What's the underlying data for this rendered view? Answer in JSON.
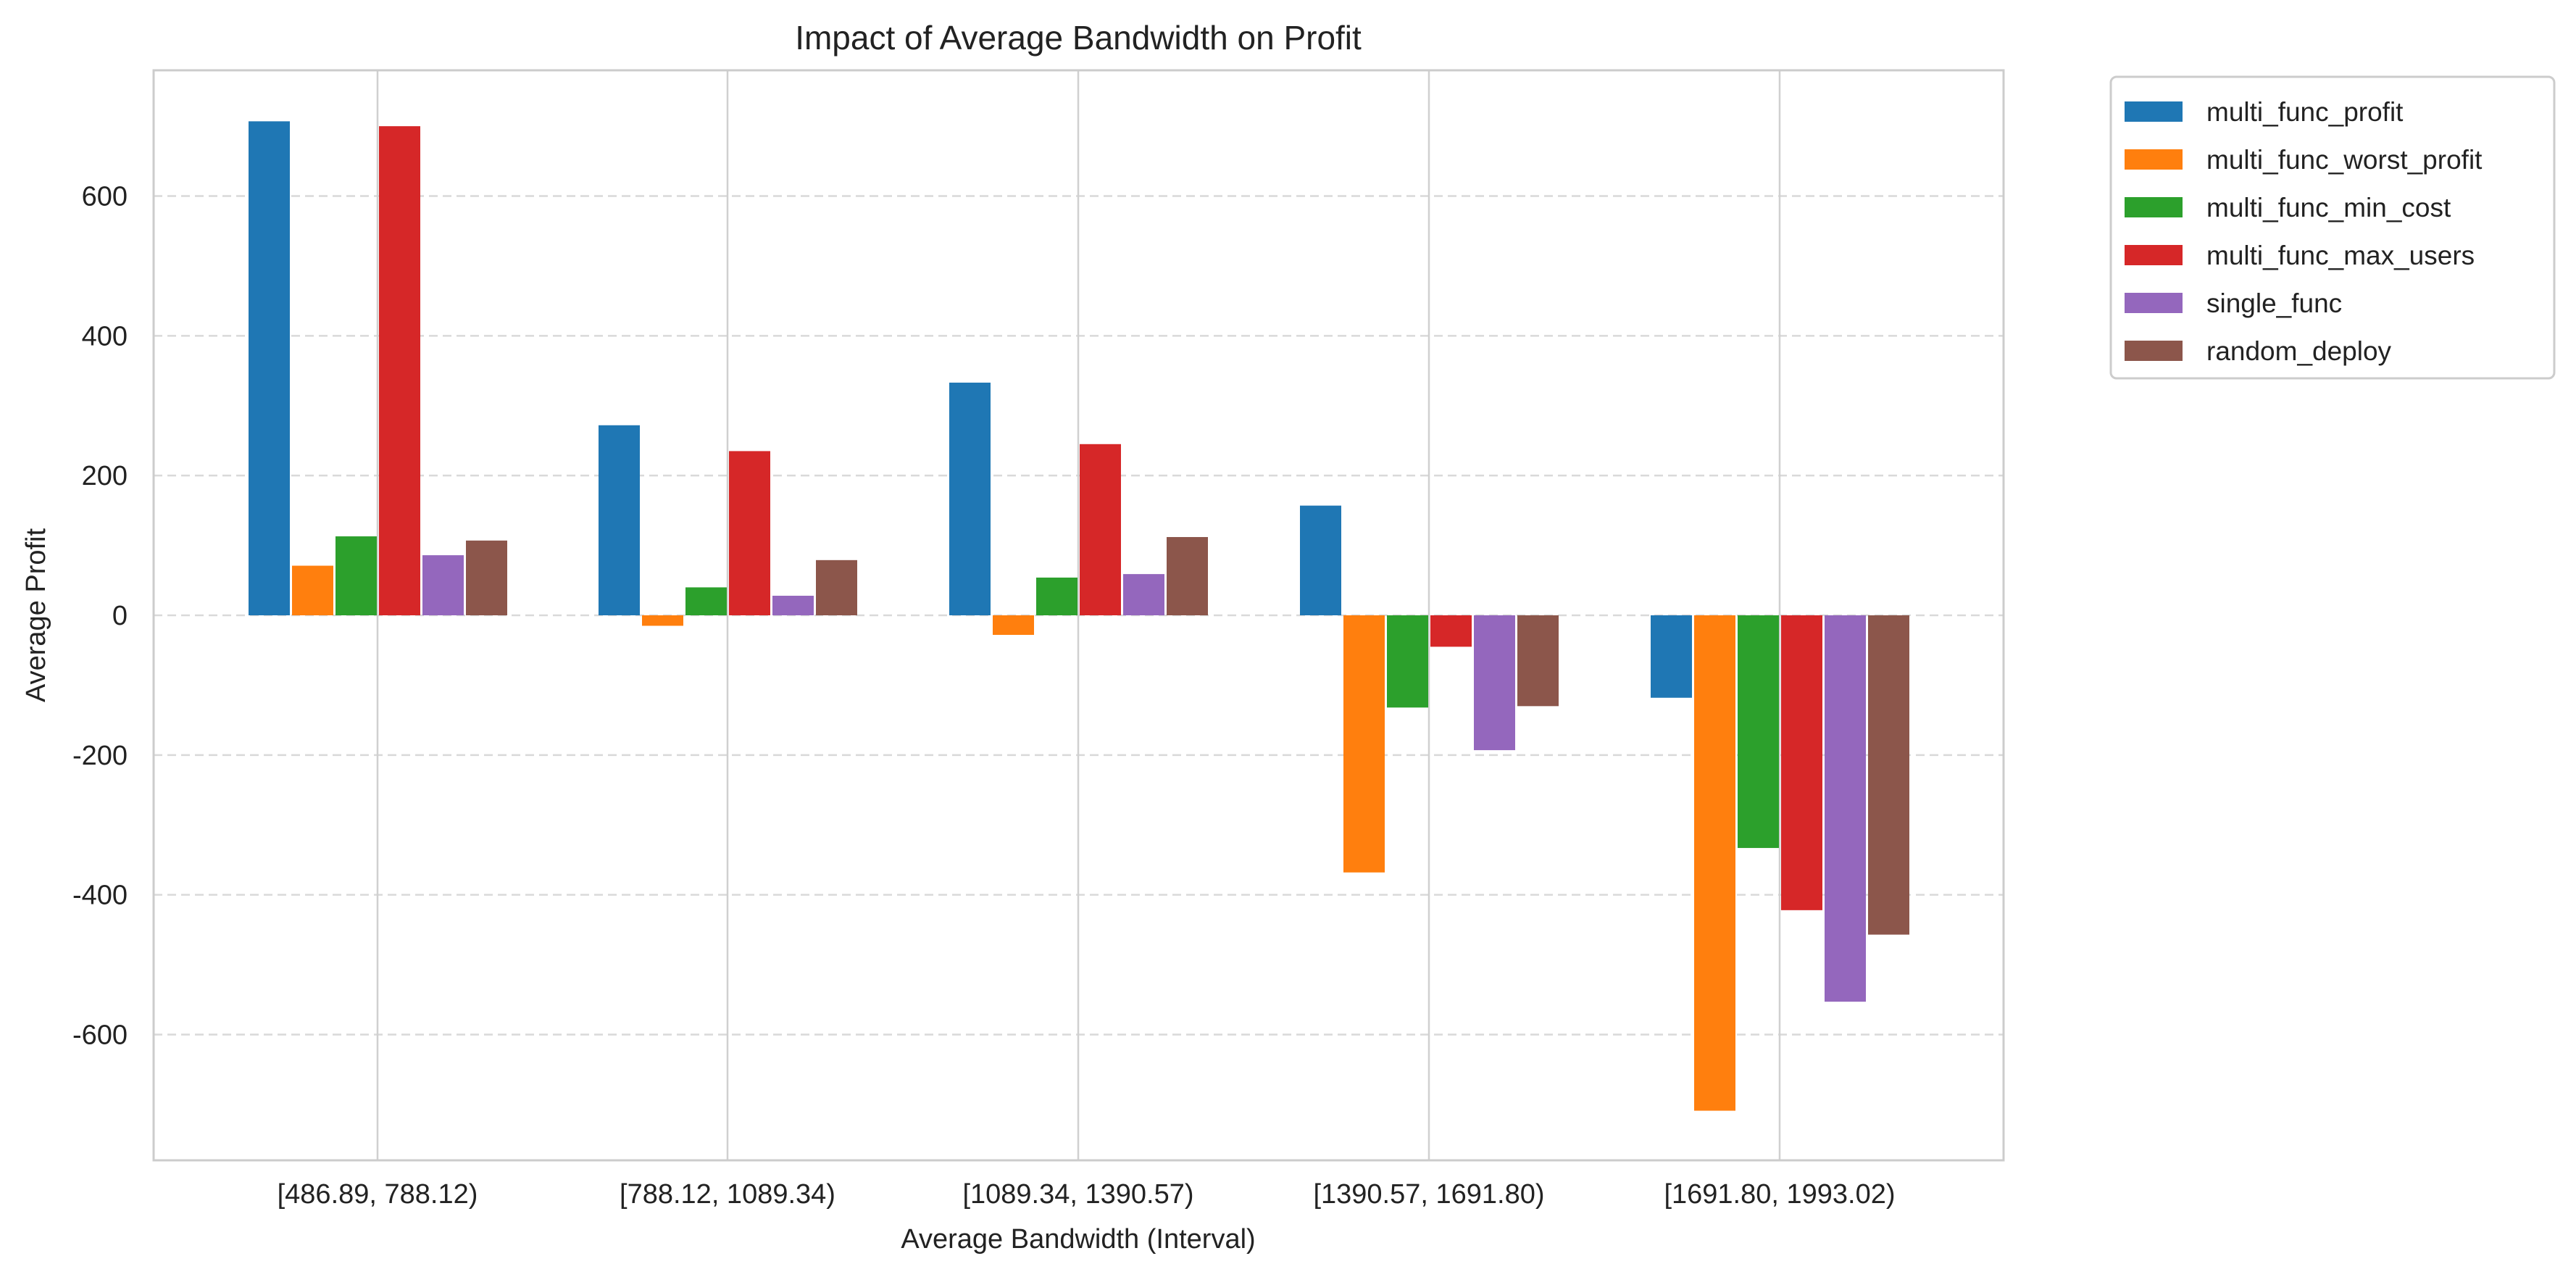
{
  "chart_data": {
    "type": "bar",
    "title": "Impact of Average Bandwidth on Profit",
    "xlabel": "Average Bandwidth (Interval)",
    "ylabel": "Average Profit",
    "categories": [
      "[486.89, 788.12)",
      "[788.12, 1089.34)",
      "[1089.34, 1390.57)",
      "[1390.57, 1691.80)",
      "[1691.80, 1993.02)"
    ],
    "ylim": [
      -780,
      780
    ],
    "yticks": [
      -600,
      -400,
      -200,
      0,
      200,
      400,
      600
    ],
    "grid": "horizontal dashed, vertical solid at categories",
    "legend_position": "outside top-right",
    "series": [
      {
        "name": "multi_func_profit",
        "color": "#1f77b4",
        "values": [
          707,
          272,
          333,
          157,
          -118
        ]
      },
      {
        "name": "multi_func_worst_profit",
        "color": "#ff7f0e",
        "values": [
          71,
          -15,
          -28,
          -368,
          -709
        ]
      },
      {
        "name": "multi_func_min_cost",
        "color": "#2ca02c",
        "values": [
          113,
          40,
          54,
          -132,
          -333
        ]
      },
      {
        "name": "multi_func_max_users",
        "color": "#d62728",
        "values": [
          700,
          235,
          245,
          -45,
          -422
        ]
      },
      {
        "name": "single_func",
        "color": "#9467bd",
        "values": [
          86,
          28,
          59,
          -193,
          -553
        ]
      },
      {
        "name": "random_deploy",
        "color": "#8c564b",
        "values": [
          107,
          79,
          112,
          -130,
          -457
        ]
      }
    ]
  }
}
